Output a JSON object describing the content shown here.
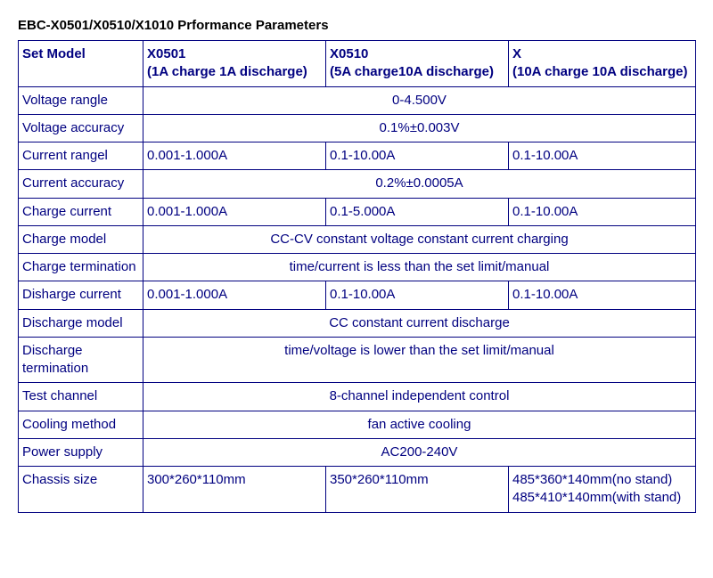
{
  "title": "EBC-X0501/X0510/X1010 Prformance Parameters",
  "headers": {
    "label": "Set Model",
    "col1_line1": "X0501",
    "col1_line2": "(1A charge 1A discharge)",
    "col2_line1": "X0510",
    "col2_line2": "(5A charge10A discharge)",
    "col3_line1": "X",
    "col3_line2": "(10A charge 10A discharge)"
  },
  "rows": {
    "voltage_range": {
      "label": "Voltage rangle",
      "value": "0-4.500V"
    },
    "voltage_accuracy": {
      "label": "Voltage  accuracy",
      "value": "0.1%±0.003V"
    },
    "current_range": {
      "label": "Current rangel",
      "v1": "0.001-1.000A",
      "v2": "0.1-10.00A",
      "v3": "0.1-10.00A"
    },
    "current_accuracy": {
      "label": "Current accuracy",
      "value": "0.2%±0.0005A"
    },
    "charge_current": {
      "label": "Charge current",
      "v1": "0.001-1.000A",
      "v2": "0.1-5.000A",
      "v3": "0.1-10.00A"
    },
    "charge_model": {
      "label": "Charge model",
      "value": "CC-CV constant voltage constant current charging"
    },
    "charge_termination": {
      "label": "Charge termination",
      "value": "time/current is less than the set limit/manual"
    },
    "discharge_current": {
      "label": "Disharge current",
      "v1": "0.001-1.000A",
      "v2": "0.1-10.00A",
      "v3": "0.1-10.00A"
    },
    "discharge_model": {
      "label": "Discharge model",
      "value": "CC constant current discharge"
    },
    "discharge_termination": {
      "label": "Discharge termination",
      "value": "time/voltage is lower than the set limit/manual"
    },
    "test_channel": {
      "label": "Test channel",
      "value": "8-channel independent control"
    },
    "cooling_method": {
      "label": "Cooling method",
      "value": "fan active cooling"
    },
    "power_supply": {
      "label": "Power supply",
      "value": "AC200-240V"
    },
    "chassis_size": {
      "label": "Chassis size",
      "v1": "300*260*110mm",
      "v2": "350*260*110mm",
      "v3_line1": "485*360*140mm(no stand)",
      "v3_line2": "485*410*140mm(with stand)"
    }
  }
}
